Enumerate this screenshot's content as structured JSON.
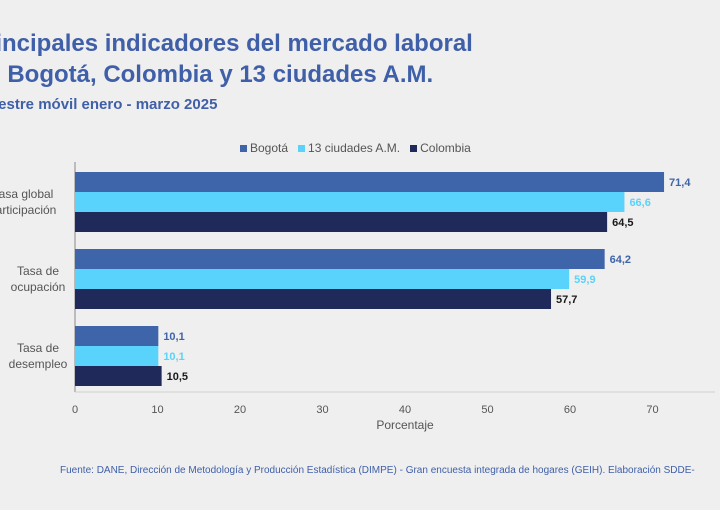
{
  "title_lines": [
    "rincipales indicadores del mercado laboral",
    "n Bogotá, Colombia y 13 ciudades A.M."
  ],
  "subtitle": "nestre móvil enero - marzo 2025",
  "source": "Fuente: DANE, Dirección de Metodología y Producción Estadística (DIMPE) - Gran encuesta integrada de hogares (GEIH). Elaboración SDDE-",
  "colors": {
    "bogota": "#3e64aa",
    "ciudades": "#59d3fb",
    "colombia": "#1f2a5a",
    "background": "#efefef",
    "title": "#3f5fa8"
  },
  "chart_data": {
    "type": "bar",
    "orientation": "horizontal",
    "categories": [
      "Tasa global de participación",
      "Tasa de ocupación",
      "Tasa de desempleo"
    ],
    "category_label_lines": [
      [
        "asa global",
        "articipación"
      ],
      [
        "Tasa de",
        "ocupación"
      ],
      [
        "Tasa de",
        "desempleo"
      ]
    ],
    "series": [
      {
        "name": "Bogotá",
        "values": [
          71.4,
          64.2,
          10.1
        ],
        "labels": [
          "71,4",
          "64,2",
          "10,1"
        ]
      },
      {
        "name": "13 ciudades A.M.",
        "values": [
          66.6,
          59.9,
          10.1
        ],
        "labels": [
          "66,6",
          "59,9",
          "10,1"
        ]
      },
      {
        "name": "Colombia",
        "values": [
          64.5,
          57.7,
          10.5
        ],
        "labels": [
          "64,5",
          "57,7",
          "10,5"
        ]
      }
    ],
    "xlabel": "Porcentaje",
    "xlim": [
      0,
      80
    ],
    "xticks": [
      0,
      10,
      20,
      30,
      40,
      50,
      60,
      70
    ],
    "legend_position": "top",
    "grid": false
  }
}
